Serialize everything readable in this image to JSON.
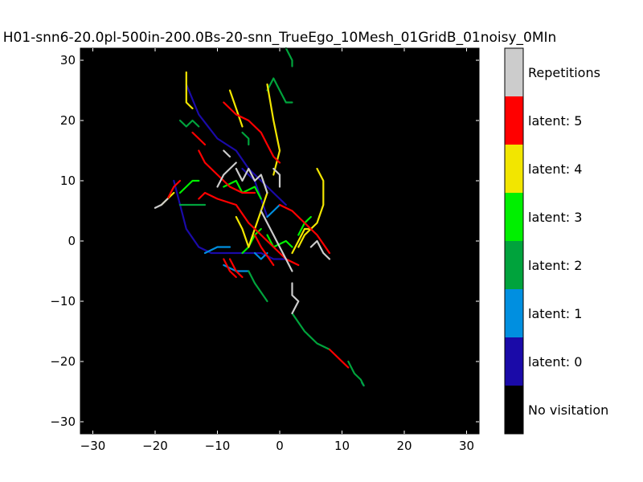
{
  "chart_data": {
    "type": "heatmap",
    "title": "H01-snn6-20.0pl-500in-200.0Bs-20-snn_TrueEgo_10Mesh_01GridB_01noisy_0MIn",
    "xlim": [
      -32,
      32
    ],
    "ylim": [
      -32,
      32
    ],
    "x_ticks": [
      -30,
      -20,
      -10,
      0,
      10,
      20,
      30
    ],
    "y_ticks": [
      -30,
      -20,
      -10,
      0,
      10,
      20,
      30
    ],
    "x_tick_labels": [
      "−30",
      "−20",
      "−10",
      "0",
      "10",
      "20",
      "30"
    ],
    "y_tick_labels": [
      "−30",
      "−20",
      "−10",
      "0",
      "10",
      "20",
      "30"
    ],
    "grid": false,
    "background_color": "#000000",
    "legend": {
      "placement": "right colorbar",
      "entries": [
        {
          "label": "No visitation",
          "color": "#000000"
        },
        {
          "label": "latent: 0",
          "color": "#1a0aa8"
        },
        {
          "label": "latent: 1",
          "color": "#008fe0"
        },
        {
          "label": "latent: 2",
          "color": "#00a33c"
        },
        {
          "label": "latent: 3",
          "color": "#00f000"
        },
        {
          "label": "latent: 4",
          "color": "#f2e600"
        },
        {
          "label": "latent: 5",
          "color": "#ff0000"
        },
        {
          "label": "Repetitions",
          "color": "#cccccc"
        }
      ]
    },
    "series": [
      {
        "latent": 0,
        "color": "#1a0aa8",
        "points": [
          [
            -17,
            10
          ],
          [
            -15,
            2
          ],
          [
            -13,
            -1
          ],
          [
            -11,
            -2
          ],
          [
            -9,
            -2
          ],
          [
            -7,
            -2
          ],
          [
            -5,
            -2
          ],
          [
            -3,
            -2
          ],
          [
            -1,
            -3
          ],
          [
            1,
            -3
          ]
        ]
      },
      {
        "latent": 0,
        "color": "#1a0aa8",
        "points": [
          [
            -15,
            26
          ],
          [
            -13,
            21
          ],
          [
            -10,
            17
          ],
          [
            -7,
            15
          ],
          [
            -5,
            12
          ],
          [
            -3,
            10
          ],
          [
            -1,
            8
          ],
          [
            1,
            6
          ]
        ]
      },
      {
        "latent": 0,
        "color": "#1a0aa8",
        "points": [
          [
            -6,
            12
          ],
          [
            -4,
            10
          ],
          [
            -3,
            7
          ],
          [
            -2,
            4
          ]
        ]
      },
      {
        "latent": 1,
        "color": "#008fe0",
        "points": [
          [
            -12,
            -2
          ],
          [
            -10,
            -1
          ],
          [
            -8,
            -1
          ]
        ]
      },
      {
        "latent": 1,
        "color": "#008fe0",
        "points": [
          [
            -4,
            -2
          ],
          [
            -3,
            -3
          ],
          [
            -2,
            -2
          ]
        ]
      },
      {
        "latent": 1,
        "color": "#008fe0",
        "points": [
          [
            -9,
            -4
          ],
          [
            -7,
            -5
          ],
          [
            -5,
            -5
          ]
        ]
      },
      {
        "latent": 1,
        "color": "#008fe0",
        "points": [
          [
            13.5,
            -24
          ],
          [
            13.2,
            -23.5
          ]
        ]
      },
      {
        "latent": 1,
        "color": "#008fe0",
        "points": [
          [
            -2,
            4
          ],
          [
            -1,
            5
          ],
          [
            0,
            6
          ]
        ]
      },
      {
        "latent": 2,
        "color": "#00a33c",
        "points": [
          [
            -16,
            20
          ],
          [
            -15,
            19
          ],
          [
            -14,
            20
          ],
          [
            -13,
            19
          ]
        ]
      },
      {
        "latent": 2,
        "color": "#00a33c",
        "points": [
          [
            -2,
            25
          ],
          [
            -1,
            27
          ],
          [
            0,
            25
          ],
          [
            1,
            23
          ],
          [
            2,
            23
          ]
        ]
      },
      {
        "latent": 2,
        "color": "#00a33c",
        "points": [
          [
            1,
            32
          ],
          [
            2,
            30
          ],
          [
            2,
            29
          ]
        ]
      },
      {
        "latent": 2,
        "color": "#00a33c",
        "points": [
          [
            -6,
            18
          ],
          [
            -5,
            17
          ],
          [
            -5,
            16
          ]
        ]
      },
      {
        "latent": 2,
        "color": "#00a33c",
        "points": [
          [
            -16,
            6
          ],
          [
            -14,
            6
          ],
          [
            -12,
            6
          ]
        ]
      },
      {
        "latent": 2,
        "color": "#00a33c",
        "points": [
          [
            -5,
            -5
          ],
          [
            -4,
            -7
          ],
          [
            -2,
            -10
          ]
        ]
      },
      {
        "latent": 2,
        "color": "#00a33c",
        "points": [
          [
            2,
            -12
          ],
          [
            4,
            -15
          ],
          [
            6,
            -17
          ],
          [
            8,
            -18
          ]
        ]
      },
      {
        "latent": 2,
        "color": "#00a33c",
        "points": [
          [
            11,
            -20
          ],
          [
            12,
            -22
          ],
          [
            13,
            -23
          ],
          [
            13.5,
            -24
          ]
        ]
      },
      {
        "latent": 3,
        "color": "#00f000",
        "points": [
          [
            -16,
            8
          ],
          [
            -14,
            10
          ],
          [
            -13,
            10
          ]
        ]
      },
      {
        "latent": 3,
        "color": "#00f000",
        "points": [
          [
            -9,
            9
          ],
          [
            -7,
            10
          ],
          [
            -6,
            8
          ],
          [
            -4,
            9
          ],
          [
            -3,
            7
          ]
        ]
      },
      {
        "latent": 3,
        "color": "#00f000",
        "points": [
          [
            -2,
            1
          ],
          [
            -1,
            -1
          ],
          [
            1,
            0
          ],
          [
            2,
            -1
          ]
        ]
      },
      {
        "latent": 3,
        "color": "#00f000",
        "points": [
          [
            -6,
            -2
          ],
          [
            -5,
            -1
          ],
          [
            -4,
            1
          ],
          [
            -3,
            2
          ]
        ]
      },
      {
        "latent": 3,
        "color": "#00f000",
        "points": [
          [
            3,
            1
          ],
          [
            4,
            3
          ],
          [
            5,
            4
          ]
        ]
      },
      {
        "latent": 4,
        "color": "#f2e600",
        "points": [
          [
            -15,
            28
          ],
          [
            -15,
            23
          ],
          [
            -14,
            22
          ]
        ]
      },
      {
        "latent": 4,
        "color": "#f2e600",
        "points": [
          [
            -8,
            25
          ],
          [
            -7,
            22
          ],
          [
            -6,
            19
          ]
        ]
      },
      {
        "latent": 4,
        "color": "#f2e600",
        "points": [
          [
            -2,
            26
          ],
          [
            -1,
            20
          ],
          [
            0,
            15
          ],
          [
            -1,
            11
          ]
        ]
      },
      {
        "latent": 4,
        "color": "#f2e600",
        "points": [
          [
            -19,
            6
          ],
          [
            -18,
            7
          ],
          [
            -17,
            8
          ]
        ]
      },
      {
        "latent": 4,
        "color": "#f2e600",
        "points": [
          [
            6,
            12
          ],
          [
            7,
            10
          ],
          [
            7,
            6
          ],
          [
            6,
            3
          ],
          [
            4,
            1
          ],
          [
            3,
            -1
          ]
        ]
      },
      {
        "latent": 4,
        "color": "#f2e600",
        "points": [
          [
            -5,
            -1
          ],
          [
            -4,
            2
          ],
          [
            -3,
            5
          ],
          [
            -2,
            8
          ]
        ]
      },
      {
        "latent": 4,
        "color": "#f2e600",
        "points": [
          [
            2,
            -2
          ],
          [
            3,
            0
          ],
          [
            4,
            2
          ],
          [
            5,
            2
          ]
        ]
      },
      {
        "latent": 4,
        "color": "#f2e600",
        "points": [
          [
            -7,
            4
          ],
          [
            -6,
            2
          ],
          [
            -5,
            -1
          ]
        ]
      },
      {
        "latent": 5,
        "color": "#ff0000",
        "points": [
          [
            -18,
            7
          ],
          [
            -17,
            9
          ],
          [
            -16,
            10
          ]
        ]
      },
      {
        "latent": 5,
        "color": "#ff0000",
        "points": [
          [
            -14,
            18
          ],
          [
            -13,
            17
          ],
          [
            -12,
            16
          ]
        ]
      },
      {
        "latent": 5,
        "color": "#ff0000",
        "points": [
          [
            -13,
            15
          ],
          [
            -12,
            13
          ],
          [
            -10,
            11
          ],
          [
            -8,
            9
          ],
          [
            -6,
            8
          ],
          [
            -4,
            8
          ]
        ]
      },
      {
        "latent": 5,
        "color": "#ff0000",
        "points": [
          [
            -13,
            7
          ],
          [
            -12,
            8
          ],
          [
            -10,
            7
          ],
          [
            -7,
            6
          ],
          [
            -5,
            3
          ],
          [
            -3,
            1
          ],
          [
            -1,
            -1
          ],
          [
            1,
            -3
          ],
          [
            3,
            -4
          ]
        ]
      },
      {
        "latent": 5,
        "color": "#ff0000",
        "points": [
          [
            -9,
            23
          ],
          [
            -7,
            21
          ],
          [
            -5,
            20
          ],
          [
            -3,
            18
          ],
          [
            -2,
            16
          ],
          [
            -1,
            14
          ],
          [
            0,
            13
          ]
        ]
      },
      {
        "latent": 5,
        "color": "#ff0000",
        "points": [
          [
            -4,
            1
          ],
          [
            -3,
            -1
          ],
          [
            -1,
            -4
          ]
        ]
      },
      {
        "latent": 5,
        "color": "#ff0000",
        "points": [
          [
            0,
            6
          ],
          [
            2,
            5
          ],
          [
            4,
            3
          ],
          [
            6,
            1
          ],
          [
            8,
            -2
          ]
        ]
      },
      {
        "latent": 5,
        "color": "#ff0000",
        "points": [
          [
            -8,
            -3
          ],
          [
            -7,
            -5
          ],
          [
            -6,
            -6
          ]
        ]
      },
      {
        "latent": 5,
        "color": "#ff0000",
        "points": [
          [
            8,
            -18
          ],
          [
            9,
            -19
          ],
          [
            10,
            -20
          ],
          [
            11,
            -21
          ]
        ]
      },
      {
        "latent": 5,
        "color": "#ff0000",
        "points": [
          [
            -9,
            -3
          ],
          [
            -8,
            -5
          ],
          [
            -7,
            -6
          ]
        ]
      },
      {
        "latent": -1,
        "color": "#cccccc",
        "points": [
          [
            -20,
            5.5
          ],
          [
            -19,
            6
          ],
          [
            -18,
            7
          ]
        ]
      },
      {
        "latent": -1,
        "color": "#cccccc",
        "points": [
          [
            -10,
            9
          ],
          [
            -9,
            11
          ],
          [
            -7,
            13
          ]
        ]
      },
      {
        "latent": -1,
        "color": "#cccccc",
        "points": [
          [
            -7,
            12
          ],
          [
            -6,
            10
          ],
          [
            -5,
            12
          ],
          [
            -4,
            10
          ],
          [
            -3,
            11
          ],
          [
            -2,
            8
          ]
        ]
      },
      {
        "latent": -1,
        "color": "#cccccc",
        "points": [
          [
            -3,
            5
          ],
          [
            -2,
            3
          ],
          [
            -1,
            1
          ],
          [
            0,
            -1
          ],
          [
            1,
            -3
          ],
          [
            2,
            -5
          ]
        ]
      },
      {
        "latent": -1,
        "color": "#cccccc",
        "points": [
          [
            -1,
            12
          ],
          [
            0,
            11
          ],
          [
            0,
            9
          ]
        ]
      },
      {
        "latent": -1,
        "color": "#cccccc",
        "points": [
          [
            5,
            -1
          ],
          [
            6,
            0
          ],
          [
            7,
            -2
          ],
          [
            8,
            -3
          ]
        ]
      },
      {
        "latent": -1,
        "color": "#cccccc",
        "points": [
          [
            2,
            -7
          ],
          [
            2,
            -9
          ],
          [
            3,
            -10
          ],
          [
            2,
            -12
          ]
        ]
      },
      {
        "latent": -1,
        "color": "#cccccc",
        "points": [
          [
            -9,
            15
          ],
          [
            -8,
            14
          ]
        ]
      }
    ]
  }
}
